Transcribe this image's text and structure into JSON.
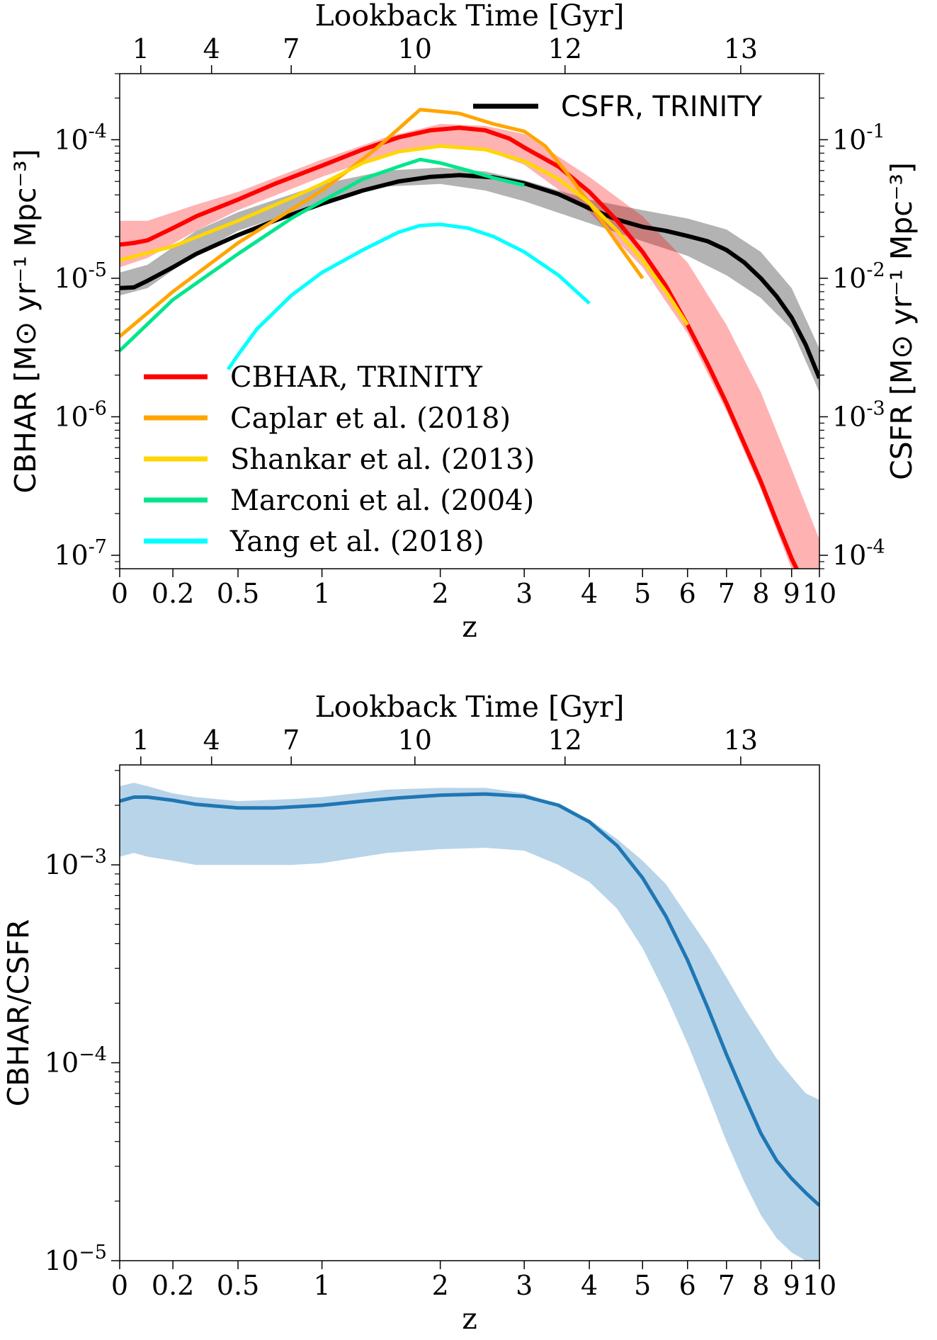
{
  "chart_data": [
    {
      "type": "line",
      "xscale": "log(1+z)",
      "xlim": [
        0,
        10
      ],
      "x_ticks": [
        "0",
        "0.2",
        "0.5",
        "1",
        "2",
        "3",
        "4",
        "5",
        "6",
        "7",
        "8",
        "9",
        "10"
      ],
      "xlabel": "z",
      "yscale": "log",
      "ylim": [
        8e-08,
        0.0003
      ],
      "ylabel": "CBHAR [M⊙ yr⁻¹ Mpc⁻³]",
      "y_ticks": [
        {
          "value": 0.0001,
          "base": "10",
          "exp": "-4"
        },
        {
          "value": 1e-05,
          "base": "10",
          "exp": "-5"
        },
        {
          "value": 1e-06,
          "base": "10",
          "exp": "-6"
        },
        {
          "value": 1e-07,
          "base": "10",
          "exp": "-7"
        }
      ],
      "y2label": "CSFR [M⊙ yr⁻¹ Mpc⁻³]",
      "y2_ticks": [
        {
          "value": 0.0001,
          "base": "10",
          "exp": "-1"
        },
        {
          "value": 1e-05,
          "base": "10",
          "exp": "-2"
        },
        {
          "value": 1e-06,
          "base": "10",
          "exp": "-3"
        },
        {
          "value": 1e-07,
          "base": "10",
          "exp": "-4"
        }
      ],
      "top_axis": {
        "label": "Lookback Time [Gyr]",
        "ticks": [
          {
            "label": "1",
            "z": 0.075
          },
          {
            "label": "4",
            "z": 0.37
          },
          {
            "label": "7",
            "z": 0.8
          },
          {
            "label": "10",
            "z": 1.75
          },
          {
            "label": "12",
            "z": 3.6
          },
          {
            "label": "13",
            "z": 7.4
          }
        ]
      },
      "legend_upper_right": {
        "label": "CSFR, TRINITY",
        "color": "#000000"
      },
      "legend_lower_left": [
        {
          "label": "CBHAR, TRINITY",
          "color": "#ff0000"
        },
        {
          "label": "Caplar et al. (2018)",
          "color": "#ffa500"
        },
        {
          "label": "Shankar et al. (2013)",
          "color": "#ffd700"
        },
        {
          "label": "Marconi et al. (2004)",
          "color": "#00e68c"
        },
        {
          "label": "Yang et al. (2018)",
          "color": "#00ffff"
        }
      ],
      "bands": [
        {
          "name": "CSFR, TRINITY",
          "color": "#999999",
          "opacity": 0.75,
          "x": [
            0,
            0.1,
            0.3,
            0.5,
            1,
            1.5,
            2,
            2.5,
            3,
            4,
            5,
            6,
            7,
            8,
            9,
            10
          ],
          "lower": [
            7.5e-06,
            8.5e-06,
            1.5e-05,
            2.2e-05,
            3.5e-05,
            4.6e-05,
            4.8e-05,
            4.3e-05,
            3.6e-05,
            2.5e-05,
            1.85e-05,
            1.45e-05,
            1.05e-05,
            7.2e-06,
            4.3e-06,
            1.5e-06
          ],
          "upper": [
            1.1e-05,
            1.25e-05,
            2.2e-05,
            3e-05,
            4.8e-05,
            6e-05,
            6.3e-05,
            5.9e-05,
            5.1e-05,
            3.7e-05,
            3.1e-05,
            2.7e-05,
            2.25e-05,
            1.55e-05,
            8.5e-06,
            3.1e-06
          ]
        },
        {
          "name": "CBHAR, TRINITY",
          "color": "#ff0000",
          "opacity": 0.3,
          "x": [
            0,
            0.1,
            0.3,
            0.5,
            1,
            1.5,
            2,
            2.5,
            3,
            4,
            5,
            6,
            7,
            8,
            9,
            10
          ],
          "lower": [
            1.2e-05,
            1.4e-05,
            2.2e-05,
            3.1e-05,
            5.4e-05,
            7.8e-05,
            9e-05,
            8.4e-05,
            6.6e-05,
            3e-05,
            1.2e-05,
            4e-06,
            1.1e-06,
            3e-07,
            8e-08,
            3e-08
          ],
          "upper": [
            2.6e-05,
            2.6e-05,
            3.4e-05,
            4.2e-05,
            7.2e-05,
            0.000105,
            0.00013,
            0.000126,
            0.00011,
            5.4e-05,
            2.8e-05,
            1.3e-05,
            4.6e-06,
            1.5e-06,
            4.2e-07,
            1.3e-07
          ]
        }
      ],
      "series": [
        {
          "name": "CSFR, TRINITY",
          "color": "#000000",
          "width": 6,
          "x": [
            0,
            0.05,
            0.1,
            0.2,
            0.3,
            0.5,
            0.7,
            1,
            1.3,
            1.6,
            1.9,
            2.2,
            2.6,
            3,
            3.5,
            4,
            4.5,
            5,
            5.5,
            6,
            6.5,
            7,
            7.5,
            8,
            8.5,
            9,
            9.5,
            10
          ],
          "y": [
            8.5e-06,
            8.6e-06,
            9.6e-06,
            1.2e-05,
            1.5e-05,
            2.05e-05,
            2.6e-05,
            3.45e-05,
            4.3e-05,
            5e-05,
            5.4e-05,
            5.55e-05,
            5.35e-05,
            4.85e-05,
            4.05e-05,
            3.2e-05,
            2.65e-05,
            2.35e-05,
            2.2e-05,
            2.02e-05,
            1.85e-05,
            1.6e-05,
            1.3e-05,
            1e-05,
            7.4e-06,
            5.2e-06,
            3.3e-06,
            1.9e-06
          ]
        },
        {
          "name": "CBHAR, TRINITY",
          "color": "#ff0000",
          "width": 6,
          "x": [
            0,
            0.05,
            0.1,
            0.2,
            0.3,
            0.5,
            0.7,
            1,
            1.3,
            1.6,
            1.9,
            2.2,
            2.5,
            2.8,
            3,
            3.5,
            4,
            4.5,
            5,
            5.5,
            6,
            6.5,
            7,
            7.5,
            8,
            8.5,
            9,
            9.5
          ],
          "y": [
            1.75e-05,
            1.8e-05,
            1.88e-05,
            2.3e-05,
            2.8e-05,
            3.7e-05,
            4.8e-05,
            6.5e-05,
            8.5e-05,
            0.000104,
            0.000117,
            0.000122,
            0.000117,
            0.000102,
            8.8e-05,
            6.4e-05,
            4.2e-05,
            2.6e-05,
            1.55e-05,
            8.8e-06,
            4.6e-06,
            2.4e-06,
            1.25e-06,
            6.4e-07,
            3.4e-07,
            1.75e-07,
            9.5e-08,
            5.8e-08
          ]
        },
        {
          "name": "Caplar et al. (2018)",
          "color": "#ffa500",
          "width": 5,
          "x": [
            0,
            0.2,
            0.5,
            1,
            1.4,
            1.8,
            2.2,
            2.6,
            3,
            3.3,
            3.6,
            4,
            4.5,
            5
          ],
          "y": [
            3.8e-06,
            8e-06,
            1.8e-05,
            4.3e-05,
            8.5e-05,
            0.000165,
            0.000155,
            0.00013,
            0.000115,
            9e-05,
            6e-05,
            3.5e-05,
            1.8e-05,
            1e-05
          ]
        },
        {
          "name": "Shankar et al. (2013)",
          "color": "#ffd700",
          "width": 5,
          "x": [
            0,
            0.2,
            0.5,
            0.8,
            1,
            1.3,
            1.6,
            2,
            2.5,
            3,
            3.5,
            4,
            4.5,
            5,
            5.5,
            6
          ],
          "y": [
            1.35e-05,
            1.7e-05,
            2.6e-05,
            3.8e-05,
            4.8e-05,
            6.8e-05,
            8.2e-05,
            9e-05,
            8.5e-05,
            7e-05,
            5.2e-05,
            3.5e-05,
            2.2e-05,
            1.35e-05,
            8e-06,
            4.6e-06
          ]
        },
        {
          "name": "Marconi et al. (2004)",
          "color": "#00e68c",
          "width": 5,
          "x": [
            0,
            0.2,
            0.5,
            0.8,
            1,
            1.3,
            1.6,
            1.8,
            2,
            2.3,
            2.6,
            3
          ],
          "y": [
            3e-06,
            7e-06,
            1.5e-05,
            2.7e-05,
            3.6e-05,
            5.2e-05,
            6.4e-05,
            7.2e-05,
            6.8e-05,
            6e-05,
            5.3e-05,
            4.7e-05
          ]
        },
        {
          "name": "Yang et al. (2018)",
          "color": "#00ffff",
          "width": 5,
          "x": [
            0.45,
            0.5,
            0.6,
            0.8,
            1,
            1.3,
            1.6,
            1.8,
            2,
            2.3,
            2.6,
            3,
            3.5,
            4
          ],
          "y": [
            2.2e-06,
            2.8e-06,
            4.3e-06,
            7.5e-06,
            1.1e-05,
            1.6e-05,
            2.15e-05,
            2.4e-05,
            2.45e-05,
            2.3e-05,
            2e-05,
            1.55e-05,
            1.05e-05,
            6.6e-06
          ]
        }
      ]
    },
    {
      "type": "line",
      "xscale": "log(1+z)",
      "xlim": [
        0,
        10
      ],
      "x_ticks": [
        "0",
        "0.2",
        "0.5",
        "1",
        "2",
        "3",
        "4",
        "5",
        "6",
        "7",
        "8",
        "9",
        "10"
      ],
      "xlabel": "z",
      "yscale": "log",
      "ylim": [
        1e-05,
        0.0032
      ],
      "ylabel": "CBHAR/CSFR",
      "y_ticks": [
        {
          "value": 0.001,
          "base": "10",
          "exp": "−3"
        },
        {
          "value": 0.0001,
          "base": "10",
          "exp": "−4"
        },
        {
          "value": 1e-05,
          "base": "10",
          "exp": "−5"
        }
      ],
      "top_axis": {
        "label": "Lookback Time [Gyr]",
        "ticks": [
          {
            "label": "1",
            "z": 0.075
          },
          {
            "label": "4",
            "z": 0.37
          },
          {
            "label": "7",
            "z": 0.8
          },
          {
            "label": "10",
            "z": 1.75
          },
          {
            "label": "12",
            "z": 3.6
          },
          {
            "label": "13",
            "z": 7.4
          }
        ]
      },
      "bands": [
        {
          "name": "CBHAR/CSFR",
          "color": "#b8d4e9",
          "opacity": 1,
          "x": [
            0,
            0.05,
            0.1,
            0.2,
            0.3,
            0.5,
            0.8,
            1,
            1.5,
            2,
            2.5,
            3,
            3.5,
            4,
            4.5,
            5,
            5.5,
            6,
            6.5,
            7,
            7.5,
            8,
            8.5,
            9,
            9.5,
            10
          ],
          "lower": [
            0.0011,
            0.00115,
            0.0011,
            0.00105,
            0.001,
            0.001,
            0.001,
            0.00102,
            0.00115,
            0.0012,
            0.00122,
            0.00118,
            0.001,
            0.00082,
            0.0006,
            0.00038,
            0.00022,
            0.000125,
            7e-05,
            4e-05,
            2.5e-05,
            1.7e-05,
            1.3e-05,
            1.1e-05,
            1e-05,
            1e-05
          ],
          "upper": [
            0.0025,
            0.0026,
            0.0025,
            0.0023,
            0.0022,
            0.0021,
            0.00215,
            0.0022,
            0.0024,
            0.00245,
            0.00245,
            0.0023,
            0.002,
            0.0017,
            0.00135,
            0.00105,
            0.0008,
            0.00055,
            0.00039,
            0.00027,
            0.00019,
            0.00014,
            0.000105,
            8.5e-05,
            7e-05,
            6.5e-05
          ]
        }
      ],
      "series": [
        {
          "name": "CBHAR/CSFR",
          "color": "#1f77b4",
          "width": 5,
          "x": [
            0,
            0.05,
            0.1,
            0.2,
            0.3,
            0.5,
            0.7,
            1,
            1.3,
            1.6,
            2,
            2.5,
            3,
            3.5,
            4,
            4.5,
            5,
            5.5,
            6,
            6.5,
            7,
            7.5,
            8,
            8.5,
            9,
            9.5,
            10
          ],
          "y": [
            0.0021,
            0.0022,
            0.0022,
            0.00212,
            0.00202,
            0.00194,
            0.00194,
            0.002,
            0.0021,
            0.00218,
            0.00225,
            0.00228,
            0.00222,
            0.002,
            0.00165,
            0.00125,
            0.00086,
            0.00055,
            0.00033,
            0.00019,
            0.00011,
            6.8e-05,
            4.4e-05,
            3.2e-05,
            2.6e-05,
            2.2e-05,
            1.9e-05
          ]
        }
      ]
    }
  ]
}
